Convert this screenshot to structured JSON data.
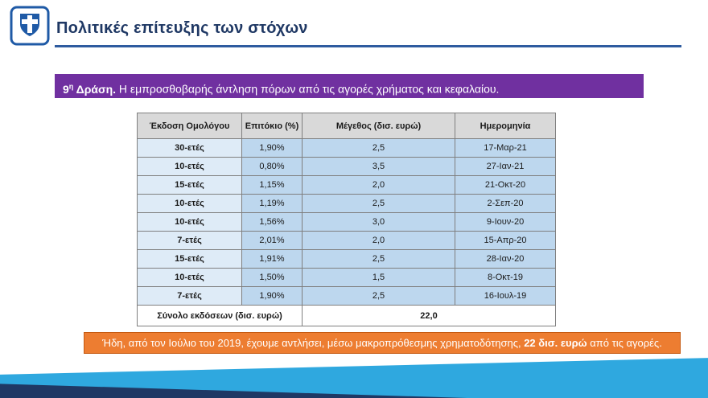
{
  "header": {
    "title": "Πολιτικές επίτευξης των στόχων",
    "logo": "greek-coat-of-arms"
  },
  "action_banner": {
    "number": "9",
    "sup": "η",
    "label": " Δράση.",
    "rest": " Η εμπροσθοβαρής άντληση πόρων από τις αγορές χρήματος και κεφαλαίου."
  },
  "table": {
    "headers": [
      "Έκδοση Ομολόγου",
      "Επιτόκιο (%)",
      "Μέγεθος (δισ. ευρώ)",
      "Ημερομηνία"
    ],
    "rows": [
      [
        "30-ετές",
        "1,90%",
        "2,5",
        "17-Μαρ-21"
      ],
      [
        "10-ετές",
        "0,80%",
        "3,5",
        "27-Ιαν-21"
      ],
      [
        "15-ετές",
        "1,15%",
        "2,0",
        "21-Οκτ-20"
      ],
      [
        "10-ετές",
        "1,19%",
        "2,5",
        "2-Σεπ-20"
      ],
      [
        "10-ετές",
        "1,56%",
        "3,0",
        "9-Ιουν-20"
      ],
      [
        "7-ετές",
        "2,01%",
        "2,0",
        "15-Απρ-20"
      ],
      [
        "15-ετές",
        "1,91%",
        "2,5",
        "28-Ιαν-20"
      ],
      [
        "10-ετές",
        "1,50%",
        "1,5",
        "8-Οκτ-19"
      ],
      [
        "7-ετές",
        "1,90%",
        "2,5",
        "16-Ιουλ-19"
      ]
    ],
    "total_label": "Σύνολο εκδόσεων (δισ. ευρώ)",
    "total_value": "22,0"
  },
  "footer_banner": {
    "text_before": "Ήδη, από τον Ιούλιο του 2019, έχουμε αντλήσει, μέσω μακροπρόθεσμης χρηματοδότησης, ",
    "bold": "22 δισ. ευρώ",
    "text_after": " από τις αγορές."
  },
  "colors": {
    "title_navy": "#1F3864",
    "rule_blue": "#2E5B9F",
    "banner_purple": "#7030A0",
    "table_header_gray": "#D9D9D9",
    "cell_blue": "#BDD7EE",
    "cell_first_blue": "#DEEBF7",
    "banner_orange": "#ED7D31",
    "ribbon_light_blue": "#2FA8DF",
    "ribbon_navy": "#1F3864",
    "logo_blue": "#1F5AA6"
  }
}
